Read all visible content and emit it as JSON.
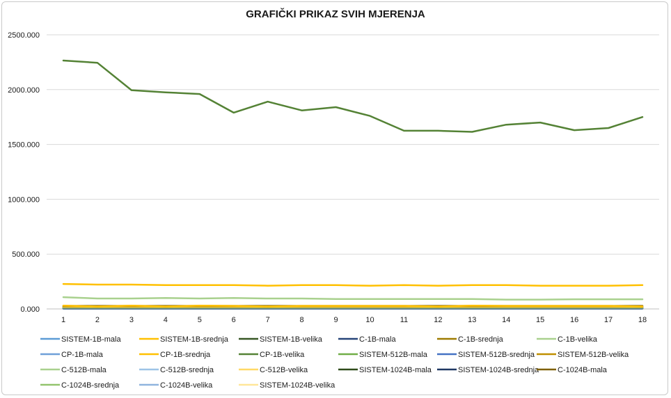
{
  "chart_data": {
    "type": "line",
    "title": "GRAFIČKI PRIKAZ SVIH MJERENJA",
    "xlabel": "",
    "ylabel": "",
    "x": [
      "1",
      "2",
      "3",
      "4",
      "5",
      "6",
      "7",
      "8",
      "9",
      "10",
      "11",
      "12",
      "13",
      "14",
      "15",
      "16",
      "17",
      "18"
    ],
    "ylim": [
      0,
      2500
    ],
    "y_ticks": [
      "0.000",
      "500.000",
      "1000.000",
      "1500.000",
      "2000.000",
      "2500.000"
    ],
    "y_tick_values": [
      0,
      500,
      1000,
      1500,
      2000,
      2500
    ],
    "grid": true,
    "legend_position": "bottom",
    "series": [
      {
        "name": "SISTEM-1B-mala",
        "color": "#5b9bd5",
        "values": [
          5,
          5,
          5,
          5,
          5,
          5,
          5,
          5,
          5,
          5,
          5,
          5,
          5,
          5,
          5,
          5,
          5,
          5
        ]
      },
      {
        "name": "SISTEM-1B-srednja",
        "color": "#ffc000",
        "values": [
          228,
          222,
          222,
          217,
          217,
          217,
          212,
          217,
          217,
          212,
          217,
          212,
          217,
          217,
          212,
          212,
          212,
          217
        ]
      },
      {
        "name": "SISTEM-1B-velika",
        "color": "#375623",
        "values": [
          12,
          12,
          12,
          12,
          12,
          12,
          12,
          12,
          12,
          12,
          12,
          12,
          12,
          12,
          12,
          12,
          12,
          12
        ]
      },
      {
        "name": "C-1B-mala",
        "color": "#264478",
        "values": [
          3,
          3,
          3,
          3,
          3,
          3,
          3,
          3,
          3,
          3,
          3,
          3,
          3,
          3,
          3,
          3,
          3,
          3
        ]
      },
      {
        "name": "C-1B-srednja",
        "color": "#9e7a00",
        "values": [
          18,
          18,
          18,
          18,
          18,
          18,
          18,
          18,
          18,
          18,
          18,
          18,
          18,
          18,
          18,
          18,
          18,
          18
        ]
      },
      {
        "name": "C-1B-velika",
        "color": "#a9d18e",
        "values": [
          107,
          95,
          95,
          100,
          95,
          100,
          95,
          95,
          90,
          90,
          90,
          90,
          90,
          85,
          85,
          88,
          88,
          88
        ]
      },
      {
        "name": "CP-1B-mala",
        "color": "#6f9fd8",
        "values": [
          8,
          8,
          8,
          8,
          8,
          8,
          8,
          8,
          8,
          8,
          8,
          8,
          8,
          8,
          8,
          8,
          8,
          8
        ]
      },
      {
        "name": "CP-1B-srednja",
        "color": "#ffc000",
        "values": [
          30,
          22,
          30,
          22,
          30,
          28,
          22,
          28,
          28,
          28,
          28,
          22,
          30,
          28,
          28,
          28,
          28,
          22
        ]
      },
      {
        "name": "CP-1B-velika",
        "color": "#548235",
        "values": [
          2265,
          2245,
          1995,
          1975,
          1960,
          1790,
          1890,
          1810,
          1840,
          1760,
          1625,
          1625,
          1615,
          1680,
          1700,
          1630,
          1650,
          1750
        ]
      },
      {
        "name": "SISTEM-512B-mala",
        "color": "#70ad47",
        "values": [
          10,
          10,
          10,
          10,
          10,
          10,
          10,
          10,
          10,
          10,
          10,
          10,
          10,
          10,
          10,
          10,
          10,
          10
        ]
      },
      {
        "name": "SISTEM-512B-srednja",
        "color": "#4472c4",
        "values": [
          6,
          6,
          6,
          6,
          6,
          6,
          6,
          6,
          6,
          6,
          6,
          6,
          6,
          6,
          6,
          6,
          6,
          6
        ]
      },
      {
        "name": "SISTEM-512B-velika",
        "color": "#bf8f00",
        "values": [
          25,
          25,
          25,
          25,
          25,
          25,
          25,
          25,
          25,
          25,
          25,
          25,
          25,
          25,
          25,
          25,
          25,
          25
        ]
      },
      {
        "name": "C-512B-mala",
        "color": "#a9d18e",
        "values": [
          14,
          14,
          14,
          14,
          14,
          14,
          14,
          14,
          14,
          14,
          14,
          14,
          14,
          14,
          14,
          14,
          14,
          14
        ]
      },
      {
        "name": "C-512B-srednja",
        "color": "#9dc3e6",
        "values": [
          9,
          9,
          9,
          9,
          9,
          9,
          9,
          9,
          9,
          9,
          9,
          9,
          9,
          9,
          9,
          9,
          9,
          9
        ]
      },
      {
        "name": "C-512B-velika",
        "color": "#ffd966",
        "values": [
          20,
          20,
          20,
          20,
          20,
          20,
          20,
          20,
          20,
          20,
          20,
          20,
          20,
          20,
          20,
          20,
          20,
          20
        ]
      },
      {
        "name": "SISTEM-1024B-mala",
        "color": "#2f4b1a",
        "values": [
          7,
          7,
          7,
          7,
          7,
          7,
          7,
          7,
          7,
          7,
          7,
          7,
          7,
          7,
          7,
          7,
          7,
          7
        ]
      },
      {
        "name": "SISTEM-1024B-srednja",
        "color": "#1f3864",
        "values": [
          4,
          4,
          4,
          4,
          4,
          4,
          4,
          4,
          4,
          4,
          4,
          4,
          4,
          4,
          4,
          4,
          4,
          4
        ]
      },
      {
        "name": "C-1024B-mala",
        "color": "#7f6000",
        "values": [
          28,
          28,
          28,
          28,
          28,
          28,
          28,
          28,
          28,
          28,
          28,
          28,
          28,
          28,
          28,
          28,
          28,
          28
        ]
      },
      {
        "name": "C-1024B-srednja",
        "color": "#92c46d",
        "values": [
          16,
          16,
          16,
          16,
          16,
          16,
          16,
          16,
          16,
          16,
          16,
          16,
          16,
          16,
          16,
          16,
          16,
          16
        ]
      },
      {
        "name": "C-1024B-velika",
        "color": "#8fb4de",
        "values": [
          11,
          11,
          11,
          11,
          11,
          11,
          11,
          11,
          11,
          11,
          11,
          11,
          11,
          11,
          11,
          11,
          11,
          11
        ]
      },
      {
        "name": "SISTEM-1024B-velika",
        "color": "#ffe699",
        "values": [
          22,
          22,
          22,
          22,
          22,
          22,
          22,
          22,
          22,
          22,
          22,
          22,
          22,
          22,
          22,
          22,
          22,
          22
        ]
      }
    ]
  }
}
